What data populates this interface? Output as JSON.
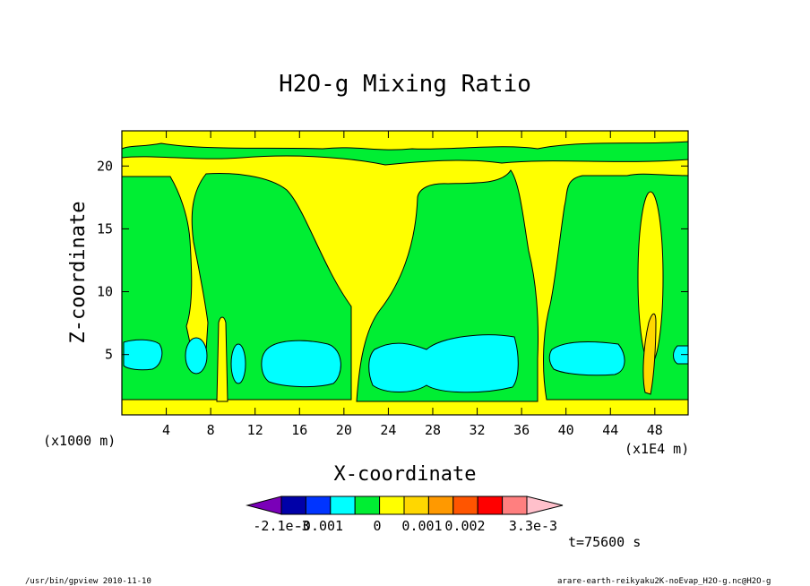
{
  "chart_data": {
    "type": "heatmap",
    "title": "H2O-g Mixing Ratio",
    "xlabel": "X-coordinate",
    "ylabel": "Z-coordinate",
    "x_unit_left": "(x1000 m)",
    "x_unit_right": "(x1E4 m)",
    "xticks": [
      4,
      8,
      12,
      16,
      20,
      24,
      28,
      32,
      36,
      40,
      44,
      48
    ],
    "yticks": [
      5,
      10,
      15,
      20
    ],
    "xlim": [
      0,
      51
    ],
    "ylim": [
      0.2,
      22.8
    ],
    "colorbar": {
      "labels": [
        "-2.1e-3",
        "-0.001",
        "0",
        "0.001",
        "0.002",
        "3.3e-3"
      ],
      "colors": [
        "#7a00b8",
        "#0000a8",
        "#0034ff",
        "#00ffff",
        "#00ee33",
        "#ffff00",
        "#ffd700",
        "#ff9900",
        "#ff5500",
        "#ff0000",
        "#ff7f7f",
        "#ffc0cb"
      ]
    },
    "regions": [
      {
        "level": "0 to 0.001",
        "color": "#ffff00",
        "role": "background"
      },
      {
        "level": "-0.001 to 0",
        "color": "#00ee33",
        "role": "main-band"
      },
      {
        "level": "-2.1e-3 to -0.001",
        "color": "#00ffff",
        "role": "low-cells"
      },
      {
        "level": "0.001 to 0.002",
        "color": "#ffd700",
        "role": "high-streak"
      }
    ]
  },
  "time_label": "t=75600 s",
  "footer": {
    "left": "/usr/bin/gpview  2010-11-10",
    "right": "arare-earth-reikyaku2K-noEvap_H2O-g.nc@H2O-g"
  }
}
